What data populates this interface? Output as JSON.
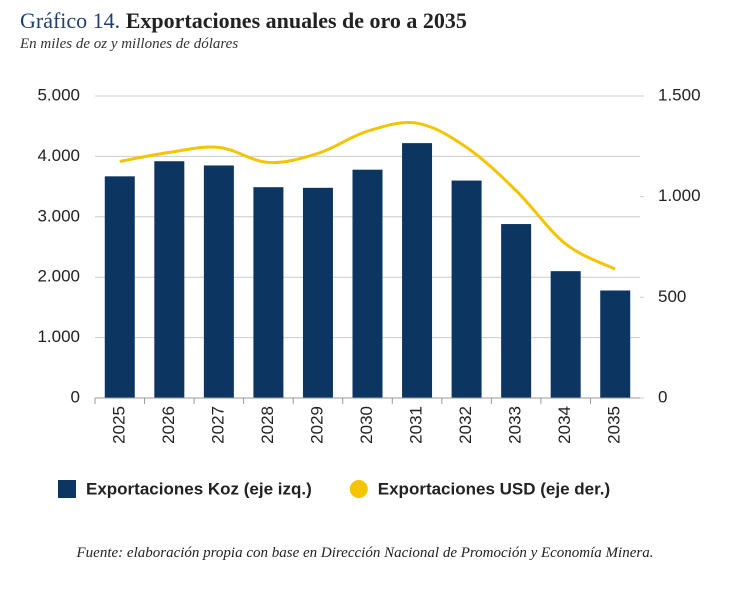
{
  "chart_data": {
    "type": "bar_line",
    "title_label": "Gráfico 14.",
    "title": "Exportaciones anuales de oro a 2035",
    "subtitle": "En miles de oz y millones de dólares",
    "source": "Fuente: elaboración propia con base en Dirección Nacional de Promoción y Economía Minera.",
    "categories": [
      "2025",
      "2026",
      "2027",
      "2028",
      "2029",
      "2030",
      "2031",
      "2032",
      "2033",
      "2034",
      "2035"
    ],
    "series": [
      {
        "name": "Exportaciones Koz (eje izq.)",
        "type": "bar",
        "color": "#0d3561",
        "values": [
          3670,
          3920,
          3850,
          3490,
          3480,
          3780,
          4220,
          3600,
          2880,
          2100,
          1780
        ]
      },
      {
        "name": "Exportaciones USD (eje der.)",
        "type": "line",
        "axis": "y2",
        "color": "#f5c400",
        "values": [
          1175,
          1220,
          1245,
          1170,
          1215,
          1325,
          1365,
          1245,
          1030,
          765,
          640
        ]
      }
    ],
    "ylim": [
      0,
      5000
    ],
    "yticks": [
      0,
      {
        "value": 1000,
        "label": "1.000"
      },
      {
        "value": 2000,
        "label": "2.000"
      },
      {
        "value": 3000,
        "label": "3.000"
      },
      {
        "value": 4000,
        "label": "4.000"
      },
      {
        "value": 5000,
        "label": "5.000"
      }
    ],
    "y2lim": [
      0,
      1500
    ],
    "y2ticks": [
      0,
      500,
      {
        "value": 1000,
        "label": "1.000"
      },
      {
        "value": 1500,
        "label": "1.500"
      }
    ],
    "grid": true
  }
}
